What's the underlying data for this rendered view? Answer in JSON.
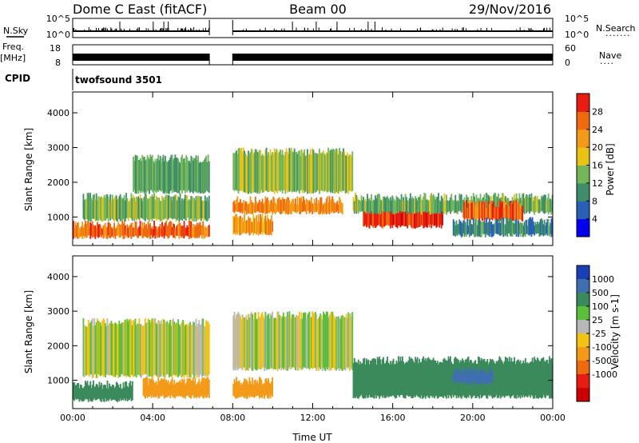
{
  "header": {
    "station": "Dome C East (fitACF)",
    "beam": "Beam 00",
    "date": "29/Nov/2016"
  },
  "strip_labels": {
    "nsky": "N.Sky",
    "freq": "Freq.",
    "freq_unit": "[MHz]",
    "cpid": "CPID",
    "nsearch": "N.Search",
    "nave": "Nave",
    "cpid_value": "twofsound 3501"
  },
  "strip_ticks": {
    "nsky": [
      "10^5",
      "10^0"
    ],
    "freq": [
      "18",
      "8"
    ],
    "nsearch": [
      "10^5",
      "10^0"
    ],
    "nave": [
      "60",
      "0"
    ]
  },
  "colors": {
    "power": [
      "#0000ee",
      "#2a5fb8",
      "#3e8e6a",
      "#74b65a",
      "#e9c214",
      "#f39a19",
      "#ef6a0e",
      "#e81c12",
      "#cc0000"
    ],
    "velocity": [
      "#1a3fb4",
      "#3f6fb0",
      "#3a8a5c",
      "#5bbf3c",
      "#b8b8b8",
      "#f2c313",
      "#f39a19",
      "#ef6a0e",
      "#e81c12",
      "#cc0000"
    ]
  },
  "chart_data": [
    {
      "type": "heatmap",
      "title": "",
      "ylabel": "Slant Range [km]",
      "xlabel": "",
      "xlim": [
        "00:00",
        "24:00"
      ],
      "ylim": [
        180,
        4600
      ],
      "xticks": [
        "00:00",
        "04:00",
        "08:00",
        "12:00",
        "16:00",
        "20:00",
        "00:00"
      ],
      "yticks": [
        "1000",
        "2000",
        "3000",
        "4000"
      ],
      "colorbar": {
        "label": "Power [dB]",
        "ticks": [
          "4",
          "8",
          "12",
          "16",
          "20",
          "24",
          "28"
        ],
        "range": [
          0,
          32
        ]
      },
      "data_gap": [
        "06:50",
        "08:00"
      ],
      "echo_regions": [
        {
          "t_start": "00:00",
          "t_end": "06:50",
          "range_start": 400,
          "range_end": 900,
          "power": 26
        },
        {
          "t_start": "00:30",
          "t_end": "06:50",
          "range_start": 900,
          "range_end": 1700,
          "power": 14
        },
        {
          "t_start": "03:00",
          "t_end": "06:50",
          "range_start": 1700,
          "range_end": 2800,
          "power": 12
        },
        {
          "t_start": "08:00",
          "t_end": "13:30",
          "range_start": 1100,
          "range_end": 1600,
          "power": 24
        },
        {
          "t_start": "08:00",
          "t_end": "14:00",
          "range_start": 1700,
          "range_end": 3000,
          "power": 15
        },
        {
          "t_start": "08:00",
          "t_end": "10:00",
          "range_start": 500,
          "range_end": 1100,
          "power": 22
        },
        {
          "t_start": "14:30",
          "t_end": "18:30",
          "range_start": 700,
          "range_end": 1400,
          "power": 29
        },
        {
          "t_start": "14:00",
          "t_end": "24:00",
          "range_start": 1100,
          "range_end": 1700,
          "power": 13
        },
        {
          "t_start": "19:30",
          "t_end": "22:30",
          "range_start": 900,
          "range_end": 1500,
          "power": 26
        },
        {
          "t_start": "19:00",
          "t_end": "24:00",
          "range_start": 450,
          "range_end": 1000,
          "power": 9
        }
      ]
    },
    {
      "type": "heatmap",
      "title": "",
      "ylabel": "Slant Range [km]",
      "xlabel": "Time UT",
      "xlim": [
        "00:00",
        "24:00"
      ],
      "ylim": [
        180,
        4600
      ],
      "xticks": [
        "00:00",
        "04:00",
        "08:00",
        "12:00",
        "16:00",
        "20:00",
        "00:00"
      ],
      "yticks": [
        "1000",
        "2000",
        "3000",
        "4000"
      ],
      "colorbar": {
        "label": "Velocity [m s-1]",
        "ticks": [
          "1000",
          "500",
          "100",
          "25",
          "-25",
          "-100",
          "-500",
          "-1000"
        ]
      },
      "data_gap": [
        "06:50",
        "08:00"
      ],
      "echo_regions": [
        {
          "t_start": "00:00",
          "t_end": "03:00",
          "range_start": 400,
          "range_end": 1000,
          "velocity": 300
        },
        {
          "t_start": "03:30",
          "t_end": "06:50",
          "range_start": 500,
          "range_end": 1100,
          "velocity": -300
        },
        {
          "t_start": "00:30",
          "t_end": "06:50",
          "range_start": 1100,
          "range_end": 2800,
          "velocity": 0
        },
        {
          "t_start": "08:00",
          "t_end": "10:00",
          "range_start": 500,
          "range_end": 1100,
          "velocity": -300
        },
        {
          "t_start": "08:00",
          "t_end": "14:00",
          "range_start": 1300,
          "range_end": 3000,
          "velocity": 0
        },
        {
          "t_start": "14:00",
          "t_end": "24:00",
          "range_start": 500,
          "range_end": 1700,
          "velocity": 200
        },
        {
          "t_start": "19:00",
          "t_end": "21:00",
          "range_start": 900,
          "range_end": 1400,
          "velocity": 900
        }
      ]
    }
  ]
}
